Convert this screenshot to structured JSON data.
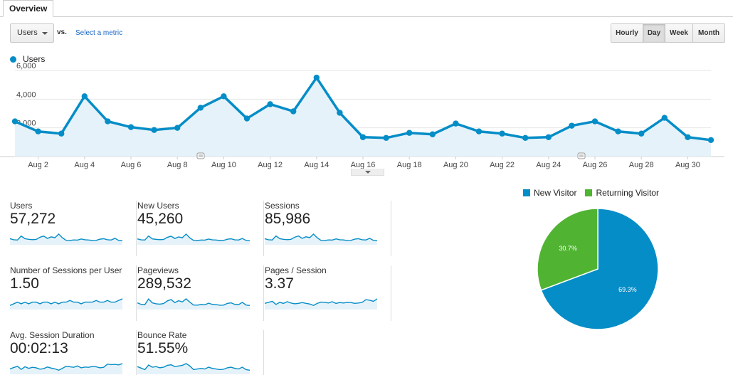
{
  "tabs": [
    {
      "label": "Overview"
    }
  ],
  "metric_selector": {
    "value": "Users",
    "vs_label": "vs.",
    "select_metric_link": "Select a metric"
  },
  "granularity": {
    "buttons": [
      "Hourly",
      "Day",
      "Week",
      "Month"
    ],
    "active": "Day"
  },
  "colors": {
    "series": "#058dc7",
    "fill": "#e6f2f9",
    "new_visitor": "#058dc7",
    "returning_visitor": "#50b432",
    "grid": "#e5e5e5"
  },
  "chart_data": [
    {
      "type": "area",
      "series": [
        {
          "name": "Users",
          "x": [
            "Aug 1",
            "Aug 2",
            "Aug 3",
            "Aug 4",
            "Aug 5",
            "Aug 6",
            "Aug 7",
            "Aug 8",
            "Aug 9",
            "Aug 10",
            "Aug 11",
            "Aug 12",
            "Aug 13",
            "Aug 14",
            "Aug 15",
            "Aug 16",
            "Aug 17",
            "Aug 18",
            "Aug 19",
            "Aug 20",
            "Aug 21",
            "Aug 22",
            "Aug 23",
            "Aug 24",
            "Aug 25",
            "Aug 26",
            "Aug 27",
            "Aug 28",
            "Aug 29",
            "Aug 30",
            "Aug 31"
          ],
          "values": [
            2450,
            1750,
            1600,
            4200,
            2450,
            2050,
            1850,
            2000,
            3400,
            4200,
            2650,
            3650,
            3150,
            5500,
            3050,
            1350,
            1300,
            1650,
            1550,
            2300,
            1750,
            1600,
            1300,
            1350,
            2150,
            2450,
            1750,
            1600,
            2700,
            1350,
            1150
          ]
        }
      ],
      "x_tick_labels": [
        "Aug 2",
        "Aug 4",
        "Aug 6",
        "Aug 8",
        "Aug 10",
        "Aug 12",
        "Aug 14",
        "Aug 16",
        "Aug 18",
        "Aug 20",
        "Aug 22",
        "Aug 24",
        "Aug 26",
        "Aug 28",
        "Aug 30"
      ],
      "y_tick_labels": [
        "2,000",
        "4,000",
        "6,000"
      ],
      "y_ticks": [
        2000,
        4000,
        6000
      ],
      "ylim": [
        0,
        6000
      ],
      "grid": true,
      "legend": "top-left"
    },
    {
      "type": "pie",
      "legend": "top",
      "slices": [
        {
          "name": "New Visitor",
          "value": 69.3,
          "label": "69.3%"
        },
        {
          "name": "Returning Visitor",
          "value": 30.7,
          "label": "30.7%"
        }
      ]
    }
  ],
  "scorecards": [
    {
      "label": "Users",
      "value": "57,272",
      "spark": [
        2450,
        1750,
        1600,
        4200,
        2450,
        2050,
        1850,
        2000,
        3400,
        4200,
        2650,
        3650,
        3150,
        5500,
        3050,
        1350,
        1300,
        1650,
        1550,
        2300,
        1750,
        1600,
        1300,
        1350,
        2150,
        2450,
        1750,
        1600,
        2700,
        1350,
        1150
      ]
    },
    {
      "label": "New Users",
      "value": "45,260",
      "spark": [
        1900,
        1400,
        1300,
        3400,
        1900,
        1650,
        1500,
        1600,
        2700,
        3300,
        2100,
        2900,
        2500,
        4400,
        2400,
        1100,
        1050,
        1300,
        1250,
        1800,
        1400,
        1300,
        1050,
        1100,
        1700,
        1950,
        1400,
        1300,
        2100,
        1100,
        950
      ]
    },
    {
      "label": "Sessions",
      "value": "85,986",
      "spark": [
        3600,
        2600,
        2400,
        6200,
        3600,
        3000,
        2700,
        3000,
        5000,
        6200,
        3900,
        5400,
        4600,
        8000,
        4500,
        2000,
        1900,
        2450,
        2300,
        3400,
        2600,
        2400,
        1950,
        2000,
        3200,
        3600,
        2600,
        2400,
        4000,
        2000,
        1700
      ]
    },
    {
      "label": "Number of Sessions per User",
      "value": "1.50",
      "spark": [
        1.48,
        1.49,
        1.5,
        1.49,
        1.5,
        1.49,
        1.5,
        1.5,
        1.49,
        1.5,
        1.5,
        1.49,
        1.5,
        1.49,
        1.5,
        1.5,
        1.51,
        1.5,
        1.5,
        1.49,
        1.5,
        1.5,
        1.5,
        1.51,
        1.5,
        1.5,
        1.51,
        1.5,
        1.5,
        1.51,
        1.52
      ]
    },
    {
      "label": "Pageviews",
      "value": "289,532",
      "spark": [
        12000,
        8800,
        8200,
        20000,
        12000,
        10000,
        9200,
        10500,
        16000,
        19000,
        12500,
        16500,
        14000,
        20500,
        13500,
        7400,
        7200,
        8400,
        8000,
        11200,
        8800,
        8300,
        7000,
        7200,
        10800,
        12000,
        8800,
        8200,
        13000,
        7400,
        6500
      ]
    },
    {
      "label": "Pages / Session",
      "value": "3.37",
      "spark": [
        3.3,
        3.35,
        3.4,
        3.25,
        3.35,
        3.3,
        3.38,
        3.32,
        3.28,
        3.3,
        3.34,
        3.3,
        3.27,
        3.2,
        3.3,
        3.36,
        3.35,
        3.32,
        3.38,
        3.3,
        3.34,
        3.32,
        3.35,
        3.34,
        3.3,
        3.32,
        3.35,
        3.48,
        3.45,
        3.4,
        3.52
      ]
    },
    {
      "label": "Avg. Session Duration",
      "value": "00:02:13",
      "spark": [
        120,
        125,
        130,
        118,
        128,
        122,
        126,
        124,
        119,
        121,
        127,
        123,
        120,
        115,
        122,
        130,
        128,
        126,
        131,
        124,
        127,
        126,
        129,
        128,
        124,
        126,
        138,
        136,
        137,
        135,
        140
      ]
    },
    {
      "label": "Bounce Rate",
      "value": "51.55%",
      "spark": [
        52,
        51.5,
        51,
        52.5,
        51.8,
        52,
        51.6,
        51.8,
        52.4,
        52.6,
        52,
        52.2,
        52.4,
        53,
        52.2,
        51,
        51.2,
        51.4,
        51.2,
        51.8,
        51.4,
        51.2,
        51,
        51.1,
        51.6,
        51.8,
        51.4,
        51.2,
        51.8,
        51,
        50.8
      ]
    }
  ]
}
